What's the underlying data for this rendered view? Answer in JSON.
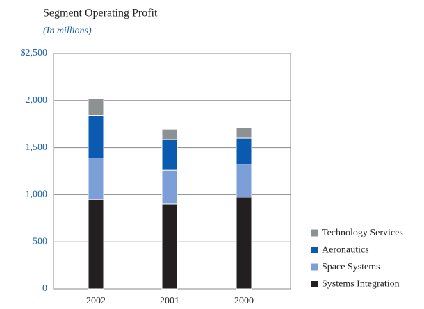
{
  "chart_data": {
    "type": "stacked_bar",
    "title": "Segment Operating Profit",
    "subtitle": "(In millions)",
    "categories": [
      "2002",
      "2001",
      "2000"
    ],
    "series": [
      {
        "name": "Systems Integration",
        "color": "#231f20",
        "values": [
          950,
          900,
          975
        ]
      },
      {
        "name": "Space Systems",
        "color": "#7b9fd6",
        "values": [
          440,
          360,
          345
        ]
      },
      {
        "name": "Aeronautics",
        "color": "#0a5bb0",
        "values": [
          450,
          325,
          280
        ]
      },
      {
        "name": "Technology Services",
        "color": "#8c9294",
        "values": [
          180,
          110,
          110
        ]
      }
    ],
    "ylim": [
      0,
      2500
    ],
    "yticks": [
      0,
      500,
      {
        "value": 1000,
        "label": "1,000"
      },
      {
        "value": 1500,
        "label": "1,500"
      },
      {
        "value": 2000,
        "label": "2,000"
      },
      {
        "value": 2500,
        "label": "$2,500"
      }
    ],
    "grid": true,
    "legend": "right"
  }
}
